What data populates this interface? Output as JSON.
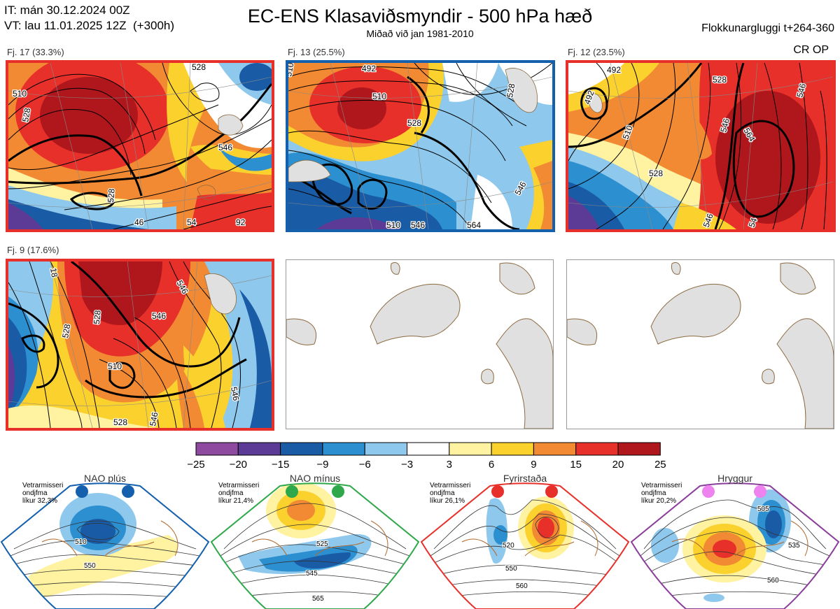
{
  "header": {
    "it_line": "IT: mán 30.12.2024 00Z",
    "vt_line": "VT: lau 11.01.2025 12Z  (+300h)",
    "title": "EC-ENS Klasaviðsmyndir - 500 hPa hæð",
    "subtitle": "Miðað við jan 1981-2010",
    "window": "Flokkunargluggi t+264-360",
    "cr_op": "CR OP"
  },
  "clusters": [
    {
      "label": "Fj. 17 (33.3%)",
      "border_color": "#e8302a",
      "contour_labels": [
        "528",
        "510",
        "528",
        "546",
        "46",
        "54",
        "92",
        "528"
      ]
    },
    {
      "label": "Fj. 13 (25.5%)",
      "border_color": "#1460ac",
      "contour_labels": [
        "492",
        "510",
        "528",
        "528",
        "546",
        "564",
        "510",
        "546",
        "510"
      ]
    },
    {
      "label": "Fj. 12 (23.5%)",
      "border_color": "#e8302a",
      "contour_labels": [
        "492",
        "492",
        "510",
        "528",
        "546",
        "564",
        "528",
        "546",
        "546",
        "54"
      ]
    },
    {
      "label": "Fj. 9 (17.6%)",
      "border_color": "#e8302a",
      "contour_labels": [
        "528",
        "546",
        "510",
        "546",
        "528",
        "546",
        "546",
        "18",
        "528"
      ]
    }
  ],
  "colorbar": {
    "ticks": [
      "−25",
      "−20",
      "−15",
      "−9",
      "−6",
      "−3",
      "3",
      "6",
      "9",
      "15",
      "20",
      "25"
    ],
    "colors": [
      "#8e4a9f",
      "#5b3b95",
      "#1a5ba6",
      "#2c8fd0",
      "#8ec8ec",
      "#ffffff",
      "#fff2a0",
      "#fbd12e",
      "#f28a33",
      "#e8302a",
      "#b0171c"
    ]
  },
  "regimes": [
    {
      "name": "NAO plús",
      "side": [
        "Vetrarmisseri",
        "ondjfma",
        "líkur 32,3%"
      ],
      "color": "#1460ac",
      "contour_labels": [
        "510",
        "550"
      ]
    },
    {
      "name": "NAO mínus",
      "side": [
        "Vetrarmisseri",
        "ondjfma",
        "líkur 21,4%"
      ],
      "color": "#2ea84a",
      "contour_labels": [
        "525",
        "545",
        "565"
      ]
    },
    {
      "name": "Fyrirstaða",
      "side": [
        "Vetrarmisseri",
        "ondjfma",
        "líkur 26,1%"
      ],
      "color": "#e8302a",
      "contour_labels": [
        "520",
        "550",
        "560"
      ]
    },
    {
      "name": "Hryggur",
      "side": [
        "Vetrarmisseri",
        "ondjfma",
        "líkur 20,2%"
      ],
      "color": "#8a3d9a",
      "contour_labels": [
        "505",
        "535",
        "560"
      ]
    }
  ],
  "chart_data": {
    "type": "heatmap",
    "title": "EC-ENS Klasaviðsmyndir - 500 hPa hæð",
    "subtitle": "Miðað við jan 1981-2010",
    "colorbar_ticks": [
      -25,
      -20,
      -15,
      -9,
      -6,
      -3,
      3,
      6,
      9,
      15,
      20,
      25
    ],
    "cluster_probabilities": [
      {
        "cluster": "Fj. 17",
        "percent": 33.3
      },
      {
        "cluster": "Fj. 13",
        "percent": 25.5
      },
      {
        "cluster": "Fj. 12",
        "percent": 23.5
      },
      {
        "cluster": "Fj. 9",
        "percent": 17.6
      }
    ],
    "regime_probabilities": [
      {
        "regime": "NAO plús",
        "percent": 32.3
      },
      {
        "regime": "NAO mínus",
        "percent": 21.4
      },
      {
        "regime": "Fyrirstaða",
        "percent": 26.1
      },
      {
        "regime": "Hryggur",
        "percent": 20.2
      }
    ]
  }
}
